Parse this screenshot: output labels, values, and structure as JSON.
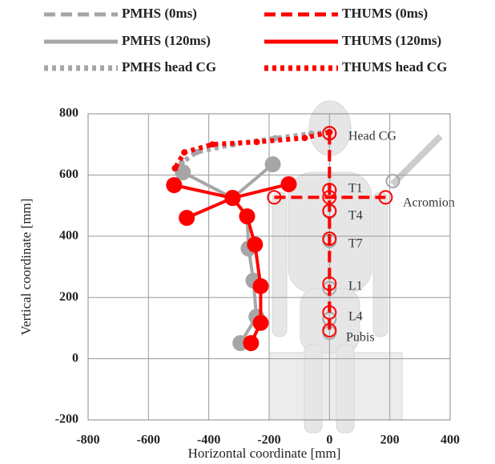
{
  "chart_data": {
    "type": "line",
    "x_label": "Horizontal coordinate [mm]",
    "y_label": "Vertical coordinate [mm]",
    "xlim": [
      -800,
      400
    ],
    "ylim": [
      -200,
      800
    ],
    "xticks": [
      -800,
      -600,
      -400,
      -200,
      0,
      200,
      400
    ],
    "yticks": [
      -200,
      0,
      200,
      400,
      600,
      800
    ],
    "grid": true,
    "series": [
      {
        "name": "PMHS (0ms)",
        "color": "#a6a6a6",
        "style": "dashed",
        "marker": "hollow",
        "x": [
          0,
          0,
          0,
          0,
          0,
          0,
          0,
          null,
          210
        ],
        "values": [
          735,
          550,
          480,
          385,
          230,
          130,
          85,
          null,
          580
        ]
      },
      {
        "name": "PMHS (120ms)",
        "color": "#a6a6a6",
        "style": "solid",
        "marker": "filled",
        "x": [
          -486,
          -321,
          -188,
          null,
          -321,
          -273,
          -268,
          -252,
          -242,
          -295
        ],
        "values": [
          609,
          525,
          635,
          null,
          525,
          465,
          360,
          255,
          137,
          51
        ]
      },
      {
        "name": "PMHS head CG",
        "color": "#a6a6a6",
        "style": "dotted",
        "marker": "small",
        "x": [
          0,
          -60,
          -180,
          -320,
          -440,
          -490
        ],
        "values": [
          740,
          735,
          720,
          700,
          675,
          640
        ]
      },
      {
        "name": "THUMS (0ms)",
        "color": "#ff0000",
        "style": "dashed",
        "marker": "hollow",
        "x": [
          0,
          0,
          0,
          0,
          0,
          0,
          0,
          null,
          -183,
          0,
          186
        ],
        "values": [
          737,
          551,
          483,
          392,
          245,
          151,
          93,
          null,
          527,
          527,
          527
        ]
      },
      {
        "name": "THUMS (120ms)",
        "color": "#ff0000",
        "style": "solid",
        "marker": "filled",
        "x": [
          -515,
          -321,
          -135,
          null,
          -473,
          -321,
          -273,
          -247,
          -228,
          -228,
          -260
        ],
        "values": [
          567,
          525,
          570,
          null,
          460,
          525,
          465,
          373,
          237,
          117,
          51
        ]
      },
      {
        "name": "THUMS head CG",
        "color": "#ff0000",
        "style": "dotted",
        "marker": "small",
        "x": [
          0,
          -82,
          -241,
          -388,
          -481,
          -512
        ],
        "values": [
          740,
          721,
          708,
          700,
          674,
          622
        ]
      }
    ],
    "annotations": [
      "Head CG",
      "T1",
      "T4",
      "T7",
      "L1",
      "L4",
      "Pubis",
      "Acromion"
    ]
  }
}
